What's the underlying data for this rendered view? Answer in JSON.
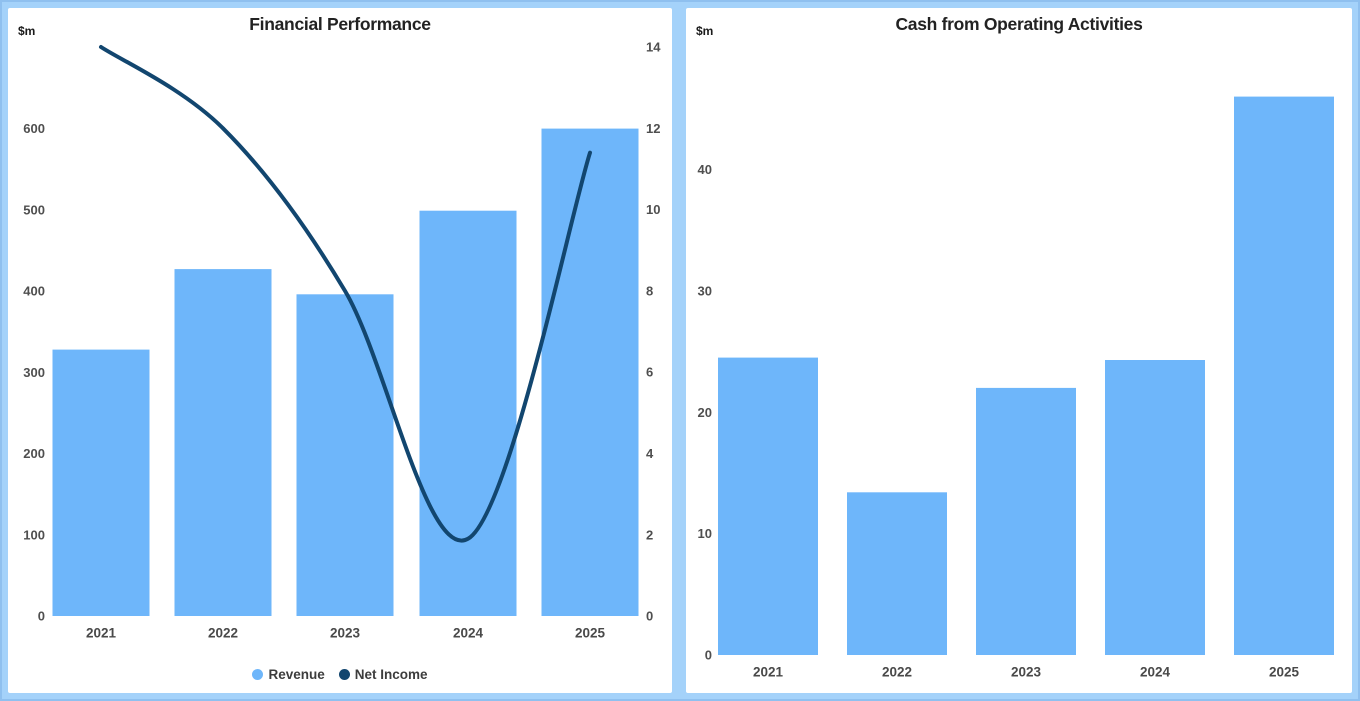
{
  "page": {
    "background": "#a4d2fa",
    "card_background": "#ffffff"
  },
  "left_chart": {
    "title": "Financial Performance",
    "unit": "$m",
    "legend": [
      {
        "label": "Revenue",
        "color": "#6eb6fa"
      },
      {
        "label": "Net Income",
        "color": "#12466f"
      }
    ]
  },
  "right_chart": {
    "title": "Cash from Operating Activities",
    "unit": "$m"
  },
  "chart_data": [
    {
      "type": "bar",
      "subtype": "combo-bar-line",
      "title": "Financial Performance",
      "ylabel": "$m",
      "categories": [
        "2021",
        "2022",
        "2023",
        "2024",
        "2025"
      ],
      "series": [
        {
          "name": "Revenue",
          "type": "bar",
          "axis": "left",
          "color": "#6eb6fa",
          "values": [
            328,
            427,
            396,
            499,
            600
          ]
        },
        {
          "name": "Net Income",
          "type": "line",
          "axis": "right",
          "color": "#12466f",
          "values": [
            14,
            12,
            8,
            1.9,
            11.4
          ]
        }
      ],
      "left_axis": {
        "ticks": [
          0,
          100,
          200,
          300,
          400,
          500,
          600
        ],
        "ylim": [
          0,
          705
        ]
      },
      "right_axis": {
        "ticks": [
          0,
          2,
          4,
          6,
          8,
          10,
          12,
          14
        ],
        "ylim": [
          0,
          14.1
        ]
      },
      "grid": false,
      "legend_position": "bottom",
      "line_style": "smooth"
    },
    {
      "type": "bar",
      "title": "Cash from Operating Activities",
      "ylabel": "$m",
      "categories": [
        "2021",
        "2022",
        "2023",
        "2024",
        "2025"
      ],
      "series": [
        {
          "name": "Cash from Operating Activities",
          "type": "bar",
          "axis": "left",
          "color": "#6eb6fa",
          "values": [
            24.5,
            13.4,
            22,
            24.3,
            46
          ]
        }
      ],
      "left_axis": {
        "ticks": [
          0,
          10,
          20,
          30,
          40
        ],
        "ylim": [
          0,
          50.4
        ]
      },
      "grid": false,
      "legend_position": "none"
    }
  ]
}
